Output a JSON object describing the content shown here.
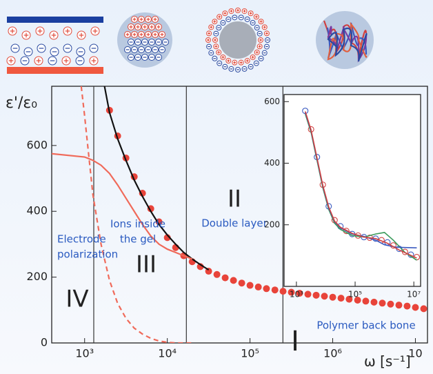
{
  "chart_data": [
    {
      "type": "scatter",
      "log_x": true,
      "y_label": "ε'/ε₀",
      "x_label": "ω [s⁻¹]",
      "xlim": [
        400,
        14000000
      ],
      "ylim": [
        0,
        780
      ],
      "xticks": [
        {
          "value": 1000,
          "label": "10³"
        },
        {
          "value": 10000,
          "label": "10⁴"
        },
        {
          "value": 100000,
          "label": "10⁵"
        },
        {
          "value": 1000000,
          "label": "10⁶"
        },
        {
          "value": 10000000,
          "label": "10"
        }
      ],
      "yticks": [
        0,
        200,
        400,
        600
      ],
      "dividers": [
        1290,
        17000,
        250000
      ],
      "annotations": [
        "IV",
        "III",
        "II",
        "I",
        "Electrode",
        "polarization",
        "Ions inside",
        "the gel",
        "Double layer",
        "Polymer back bone"
      ],
      "series": [
        {
          "style": "dots",
          "color": "#e8443a",
          "x": [
            2000,
            2510,
            3160,
            3980,
            5010,
            6310,
            7940,
            10000,
            12600,
            15800,
            20000,
            25100,
            31600,
            39800,
            50100,
            63100,
            79400,
            100000,
            126000,
            158000,
            200000,
            251000,
            316000,
            398000,
            501000,
            631000,
            794000,
            1000000,
            1260000,
            1580000,
            2000000,
            2510000,
            3160000,
            3980000,
            5010000,
            6310000,
            7940000,
            10000000,
            12600000
          ],
          "values": [
            707,
            629,
            562,
            505,
            455,
            408,
            368,
            320,
            290,
            265,
            247,
            232,
            218,
            208,
            198,
            190,
            182,
            175,
            170,
            165,
            161,
            157,
            154,
            151,
            148,
            145,
            142,
            139,
            136,
            133,
            130,
            127,
            124,
            121,
            118,
            115,
            112,
            108,
            104
          ]
        },
        {
          "style": "line",
          "color": "#111111",
          "x": [
            1740,
            2000,
            2510,
            3160,
            3980,
            5010,
            6310,
            7940,
            10000,
            12600,
            15800,
            20000,
            25100,
            31600
          ],
          "values": [
            780,
            700,
            620,
            555,
            495,
            445,
            400,
            360,
            328,
            300,
            275,
            255,
            238,
            222
          ]
        },
        {
          "style": "line",
          "color": "#f06a5a",
          "x": [
            400,
            1000,
            1260,
            1580,
            2000,
            2510,
            3160,
            3980,
            5010,
            6310,
            7940,
            10000,
            12600,
            15800,
            20000
          ],
          "values": [
            575,
            565,
            555,
            540,
            515,
            480,
            440,
            400,
            360,
            325,
            300,
            285,
            275,
            265,
            255
          ]
        },
        {
          "style": "dashed",
          "color": "#f06a5a",
          "x": [
            910,
            1000,
            1100,
            1260,
            1580,
            2000,
            2510,
            3160,
            3980,
            5010,
            6310,
            7940,
            10000,
            12600,
            20000
          ],
          "values": [
            780,
            690,
            590,
            450,
            300,
            190,
            120,
            75,
            45,
            27,
            14,
            6,
            2,
            0,
            0
          ]
        }
      ]
    },
    {
      "type": "scatter",
      "log_x": true,
      "xlim": [
        380,
        17000000
      ],
      "ylim": [
        0,
        623
      ],
      "xticks": [
        {
          "value": 1000,
          "label": "10³"
        },
        {
          "value": 100000,
          "label": "10⁵"
        },
        {
          "value": 10000000,
          "label": "10⁷"
        }
      ],
      "yticks": [
        200,
        400,
        600
      ],
      "series": [
        {
          "style": "circles",
          "color": "#9a4a8a",
          "x": [
            2000,
            3160,
            5010,
            7940,
            12600,
            20000,
            31600,
            50100,
            79400,
            126000,
            200000,
            316000,
            501000,
            794000,
            1260000,
            2000000,
            3160000,
            5010000,
            7940000,
            12600000
          ],
          "values": [
            570,
            510,
            420,
            330,
            260,
            215,
            195,
            180,
            170,
            165,
            160,
            158,
            155,
            150,
            143,
            133,
            122,
            112,
            103,
            95
          ]
        },
        {
          "style": "line",
          "color": "#3a9a5a",
          "x": [
            2000,
            3160,
            5010,
            7940,
            12600,
            20000,
            31600,
            79400,
            200000,
            501000,
            1000000,
            2000000,
            5010000,
            12600000
          ],
          "values": [
            560,
            500,
            410,
            320,
            250,
            205,
            185,
            165,
            160,
            170,
            175,
            150,
            110,
            85
          ]
        },
        {
          "style": "line",
          "color": "#3a5ac0",
          "x": [
            2000,
            3160,
            5010,
            7940,
            12600,
            20000,
            31600,
            79400,
            200000,
            501000,
            1000000,
            2510000,
            12600000
          ],
          "values": [
            565,
            505,
            415,
            325,
            255,
            210,
            190,
            170,
            162,
            150,
            135,
            127,
            125
          ]
        },
        {
          "style": "line",
          "color": "#d04040",
          "x": [
            2000,
            3160,
            5010,
            7940,
            12600,
            20000,
            31600,
            79400,
            200000,
            501000,
            1260000,
            3160000,
            12600000
          ],
          "values": [
            568,
            508,
            418,
            328,
            258,
            212,
            192,
            172,
            160,
            155,
            140,
            118,
            92
          ]
        }
      ]
    }
  ]
}
